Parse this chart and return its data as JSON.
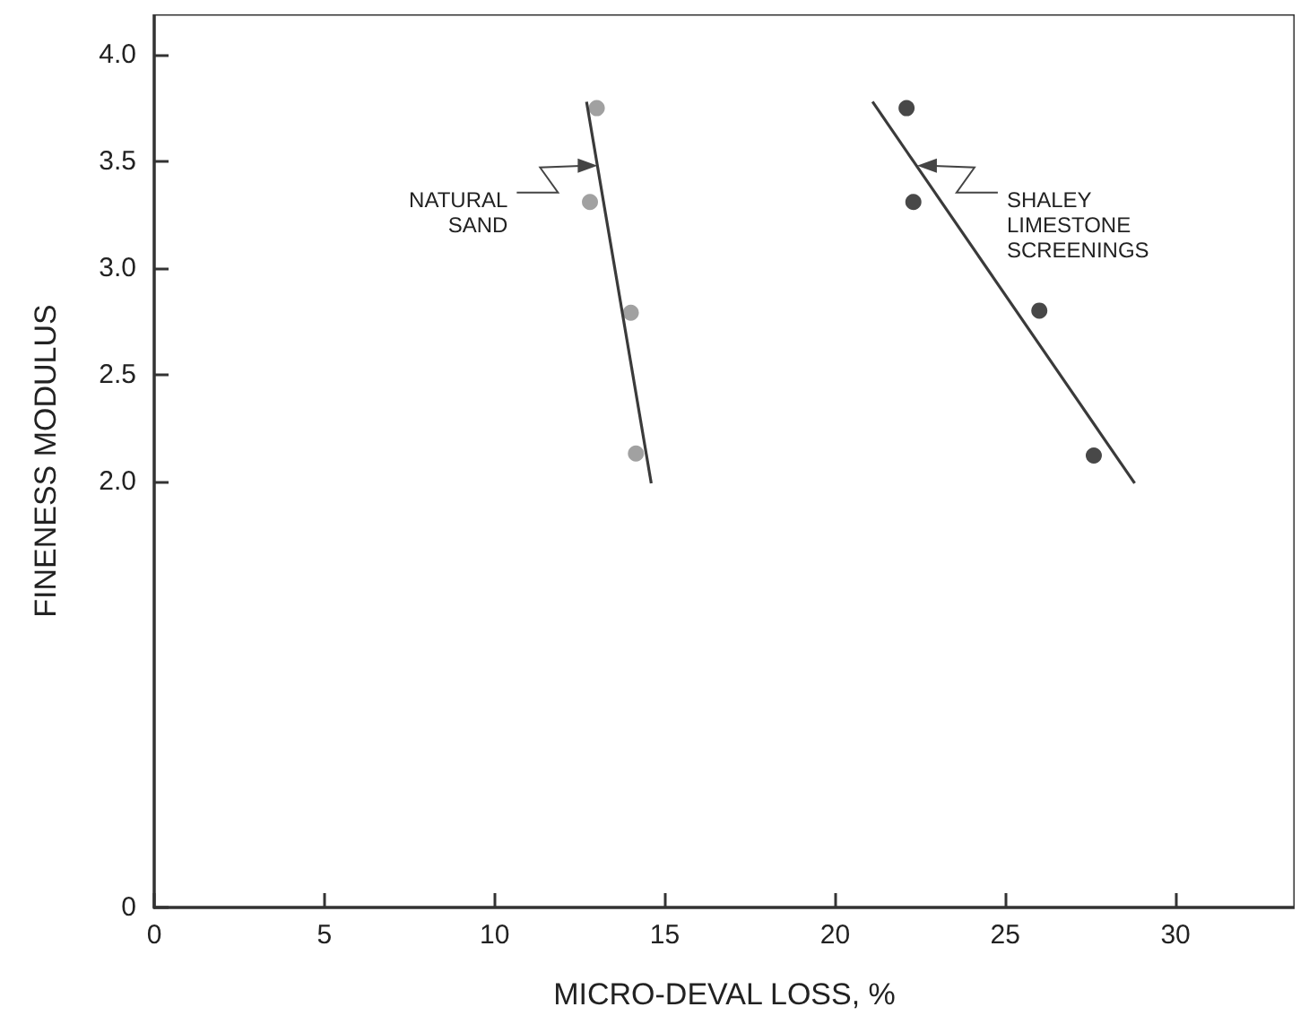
{
  "chart_data": {
    "type": "scatter",
    "xlabel": "MICRO-DEVAL LOSS, %",
    "ylabel": "FINENESS MODULUS",
    "xlim": [
      0,
      33.5
    ],
    "ylim": [
      0,
      4.19
    ],
    "xticks": [
      0,
      5,
      10,
      15,
      20,
      25,
      30
    ],
    "yticks": [
      0,
      {
        "value": 2,
        "label": "2.0"
      },
      2.5,
      {
        "value": 3,
        "label": "3.0"
      },
      3.5,
      {
        "value": 4,
        "label": "4.0"
      }
    ],
    "grid": false,
    "marker": "circle",
    "series": [
      {
        "type": "scatter",
        "color": "#8a8a8a",
        "x": [
          13.0,
          12.8,
          14.0,
          14.15
        ],
        "values": [
          3.75,
          3.31,
          2.79,
          2.13
        ]
      },
      {
        "type": "scatter",
        "color": "#1a1a1a",
        "x": [
          22.1,
          22.3,
          26.0,
          27.6
        ],
        "values": [
          3.75,
          3.31,
          2.8,
          2.12
        ]
      },
      {
        "type": "line",
        "color": "#3a3a3a",
        "marker": "none",
        "x": [
          12.7,
          14.6
        ],
        "values": [
          3.78,
          1.99
        ]
      },
      {
        "type": "line",
        "color": "#3a3a3a",
        "marker": "none",
        "x": [
          21.1,
          28.8
        ],
        "values": [
          3.78,
          1.99
        ]
      }
    ],
    "annotations": [
      {
        "text": "NATURAL\nSAND",
        "x": 13.02,
        "y": 3.48
      },
      {
        "text": "SHALEY\nLIMESTONE\nSCREENINGS",
        "x": 22.41,
        "y": 3.48
      }
    ]
  }
}
